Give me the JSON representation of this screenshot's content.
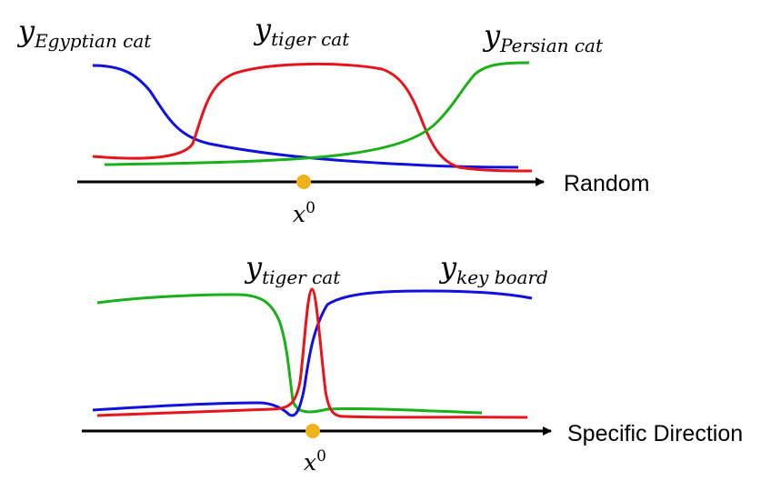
{
  "top_panel": {
    "axis_label": "Random",
    "origin_label": "x",
    "origin_sup": "0",
    "curve_labels": [
      {
        "main": "y",
        "sub": "Egyptian cat"
      },
      {
        "main": "y",
        "sub": "tiger cat"
      },
      {
        "main": "y",
        "sub": "Persian cat"
      }
    ]
  },
  "bottom_panel": {
    "axis_label": "Specific Direction",
    "origin_label": "x",
    "origin_sup": "0",
    "curve_labels": [
      {
        "main": "y",
        "sub": "tiger cat"
      },
      {
        "main": "y",
        "sub": "key board"
      }
    ]
  },
  "colors": {
    "red": "#e8141c",
    "blue": "#1010e0",
    "green": "#1ab01a",
    "axis": "#000000",
    "origin_point": "#f0b21a"
  }
}
